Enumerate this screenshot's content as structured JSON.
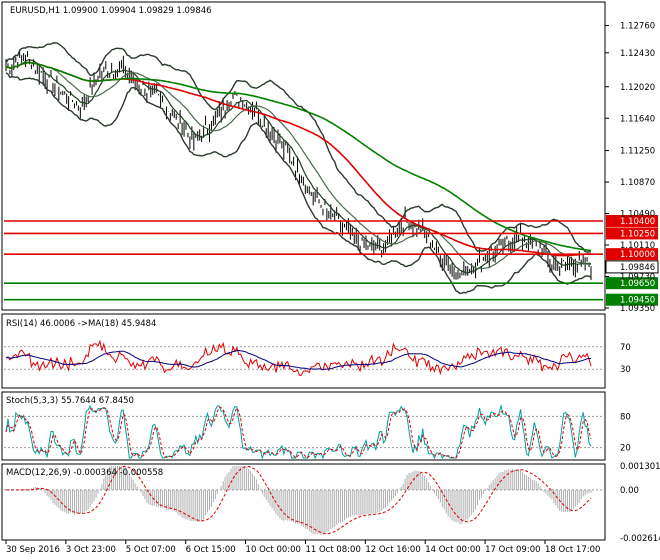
{
  "main": {
    "header": "EURUSD,H1  1.09900 1.09904 1.09829 1.09846",
    "ylim": [
      1.0935,
      1.1285
    ],
    "ticks": [
      "1.12760",
      "1.12430",
      "1.12020",
      "1.11640",
      "1.11250",
      "1.10870",
      "1.10490",
      "1.10110",
      "1.09730",
      "1.09350"
    ],
    "tick_values": [
      1.1276,
      1.1243,
      1.1202,
      1.1164,
      1.1125,
      1.1087,
      1.1049,
      1.1011,
      1.0973,
      1.0935
    ],
    "current_price": {
      "label": "1.09846",
      "value": 1.09846
    },
    "levels": [
      {
        "label": "1.10400",
        "value": 1.104,
        "color": "#e00000"
      },
      {
        "label": "1.10250",
        "value": 1.1025,
        "color": "#e00000"
      },
      {
        "label": "1.10000",
        "value": 1.1,
        "color": "#e00000"
      },
      {
        "label": "1.09650",
        "value": 1.0965,
        "color": "#008000"
      },
      {
        "label": "1.09450",
        "value": 1.0945,
        "color": "#008000"
      }
    ]
  },
  "rsi": {
    "header": "RSI(14) 46.0006  ->MA(18) 45.9484",
    "ticks": [
      "70",
      "30"
    ],
    "tick_values": [
      70,
      30
    ],
    "ylim": [
      0,
      100
    ]
  },
  "stoch": {
    "header": "Stoch(5,3,3) 55.7644 67.8450",
    "ticks": [
      "80",
      "20"
    ],
    "tick_values": [
      80,
      20
    ],
    "ylim": [
      0,
      100
    ]
  },
  "macd": {
    "header": "MACD(12,26,9) -0.000364 -0.000558",
    "ticks": [
      "0.001301",
      "0.00",
      "-0.002614"
    ],
    "tick_values": [
      0.001301,
      0,
      -0.002614
    ],
    "ylim": [
      -0.002614,
      0.001301
    ]
  },
  "xaxis": [
    "30 Sep 2016",
    "3 Oct 23:00",
    "5 Oct 07:00",
    "6 Oct 15:00",
    "10 Oct 00:00",
    "11 Oct 08:00",
    "12 Oct 16:00",
    "14 Oct 00:00",
    "17 Oct 09:00",
    "18 Oct 17:00"
  ],
  "colors": {
    "price": "#000000",
    "ma_fast": "#1f3f1f",
    "ma_mid": "#e00000",
    "ma_slow": "#008000",
    "bands": "#2a3a2a",
    "rsi": "#e00000",
    "rsi_ma": "#000080",
    "stoch_main": "#00a0a0",
    "stoch_signal": "#e00000",
    "macd_hist": "#b0b0b0",
    "macd_signal": "#e00000",
    "level_red": "#e00000",
    "level_green": "#008000"
  },
  "chart_data": {
    "type": "line",
    "title": "EURUSD,H1",
    "x_labels": [
      "30 Sep 2016",
      "3 Oct 23:00",
      "5 Oct 07:00",
      "6 Oct 15:00",
      "10 Oct 00:00",
      "11 Oct 08:00",
      "12 Oct 16:00",
      "14 Oct 00:00",
      "17 Oct 09:00",
      "18 Oct 17:00"
    ],
    "series": [
      {
        "name": "EURUSD",
        "values": [
          1.1225,
          1.1238,
          1.1215,
          1.1195,
          1.1178,
          1.122,
          1.1225,
          1.1205,
          1.119,
          1.1165,
          1.1135,
          1.116,
          1.119,
          1.118,
          1.115,
          1.112,
          1.108,
          1.105,
          1.103,
          1.101,
          1.1005,
          1.104,
          1.103,
          1.1,
          1.0975,
          1.099,
          1.1005,
          1.102,
          1.1015,
          1.0985,
          1.099,
          1.0985
        ]
      }
    ],
    "levels": [
      1.104,
      1.1025,
      1.1,
      1.0965,
      1.0945
    ],
    "ylim": [
      1.0935,
      1.1285
    ]
  }
}
